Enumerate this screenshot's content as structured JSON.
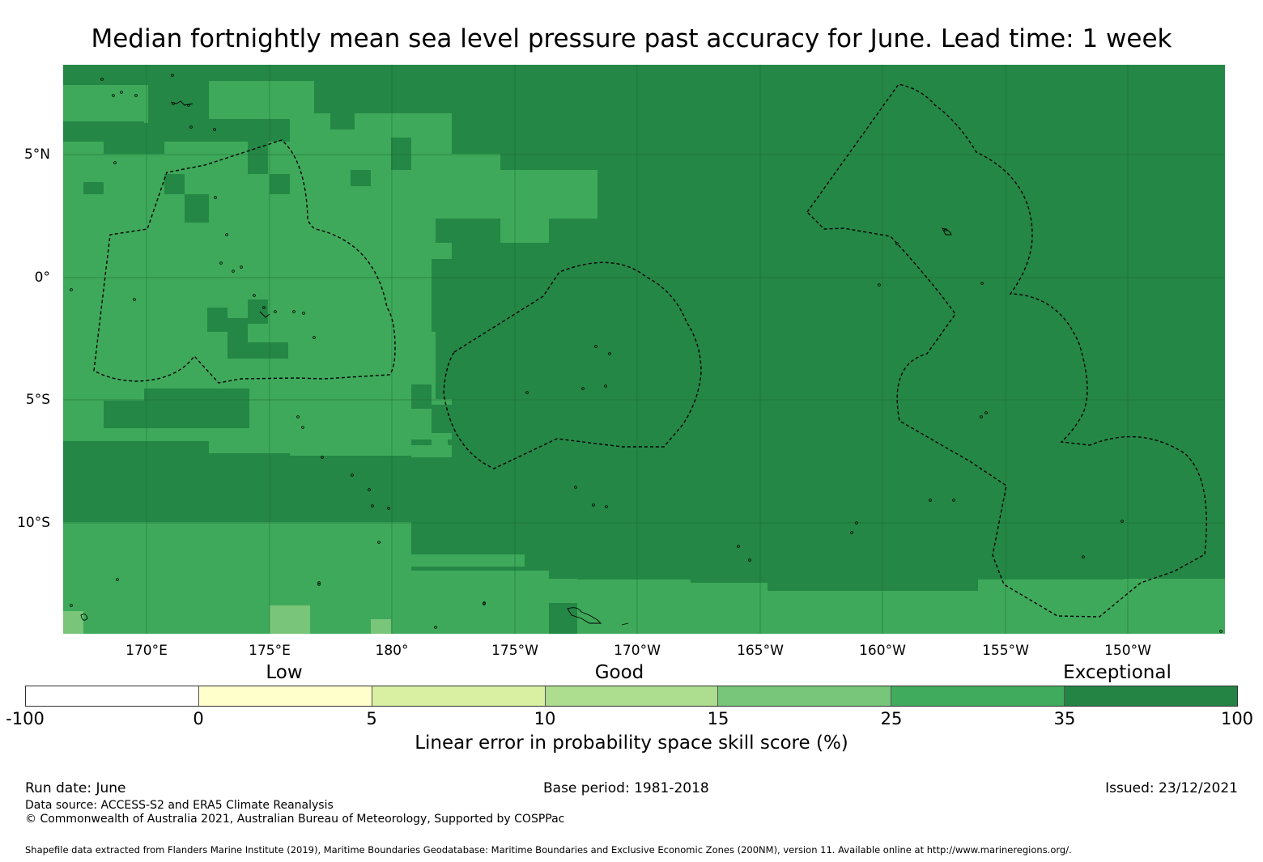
{
  "title": "Median fortnightly mean sea level pressure past accuracy for June. Lead time: 1 week",
  "map": {
    "latitude_labels": [
      "5°N",
      "0°",
      "5°S",
      "10°S"
    ],
    "longitude_labels": [
      "170°E",
      "175°E",
      "180°",
      "175°W",
      "170°W",
      "165°W",
      "160°W",
      "155°W",
      "150°W"
    ],
    "colors": {
      "exceptional": "#248745",
      "very_good": "#3ea95a",
      "good": "#79c57a",
      "gridline": "#1a5e31",
      "boundary": "#000000"
    }
  },
  "legend": {
    "category_labels": [
      "Low",
      "Good",
      "Exceptional"
    ],
    "tick_labels": [
      "-100",
      "0",
      "5",
      "10",
      "15",
      "25",
      "35",
      "100"
    ],
    "colors": [
      "#ffffff",
      "#ffffcc",
      "#d9f0a3",
      "#addd8e",
      "#78c679",
      "#41ab5d",
      "#238443"
    ],
    "title": "Linear error in probability space skill score (%)"
  },
  "footer": {
    "run_date": "Run date: June",
    "base_period": "Base period: 1981-2018",
    "issued": "Issued: 23/12/2021",
    "data_source": "Data source: ACCESS-S2 and ERA5 Climate Reanalysis",
    "copyright": "© Commonwealth of Australia 2021, Australian Bureau of Meteorology, Supported by COSPPac",
    "shapefile_note": "Shapefile data extracted from Flanders Marine Institute (2019), Maritime Boundaries Geodatabase: Maritime Boundaries and Exclusive Economic Zones (200NM), version 11. Available online at http://www.marineregions.org/."
  }
}
